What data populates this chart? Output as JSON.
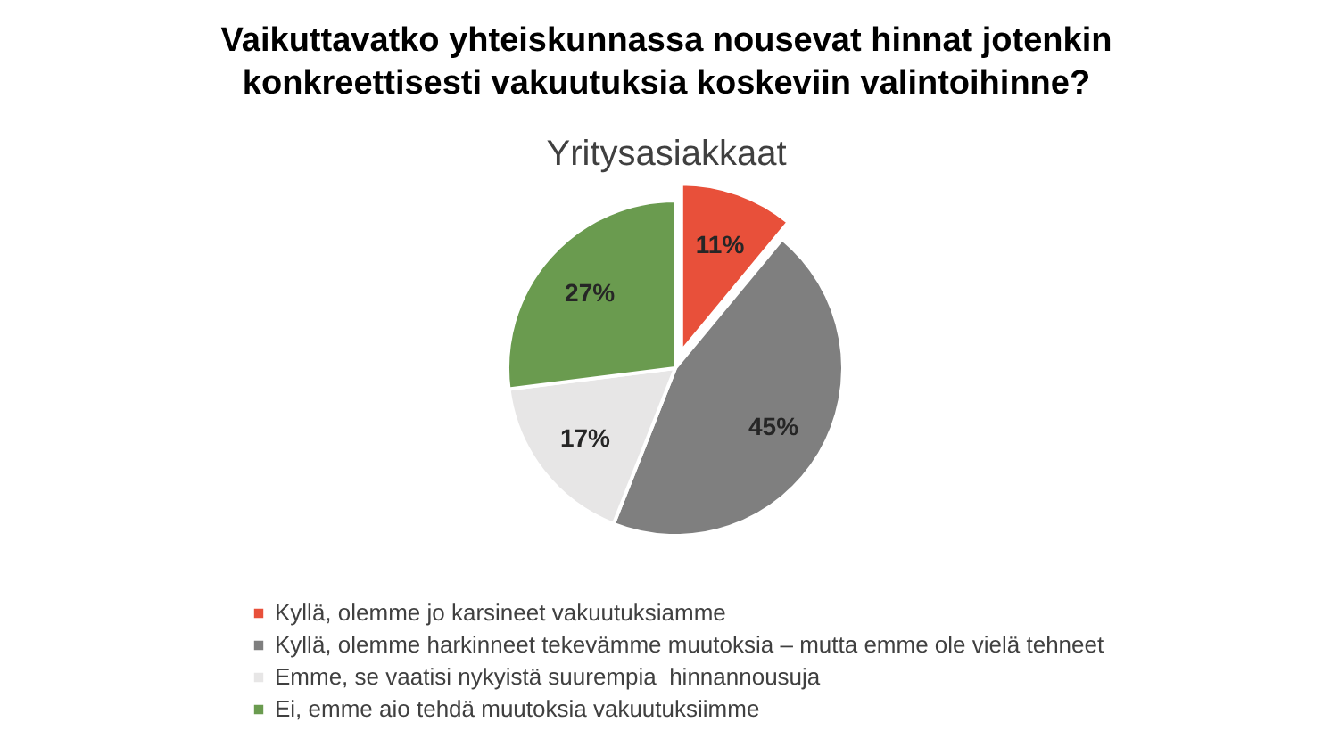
{
  "chart_data": {
    "type": "pie",
    "title": "Vaikuttavatko yhteiskunnassa nousevat hinnat jotenkin konkreettisesti vakuutuksia koskeviin valintoihinne?",
    "subtitle": "Yritysasiakkaat",
    "categories": [
      "Kyllä, olemme jo karsineet vakuutuksiamme",
      "Kyllä, olemme harkinneet tekevämme muutoksia – mutta emme ole vielä tehneet",
      "Emme, se vaatisi nykyistä suurempia  hinnannousuja",
      "Ei, emme aio tehdä muutoksia vakuutuksiimme"
    ],
    "values": [
      11,
      45,
      17,
      27
    ],
    "colors": [
      "#e8503a",
      "#7f7f7f",
      "#e7e6e6",
      "#6a9b4f"
    ],
    "value_labels": [
      "11%",
      "45%",
      "17%",
      "27%"
    ],
    "legend": "bottom"
  }
}
